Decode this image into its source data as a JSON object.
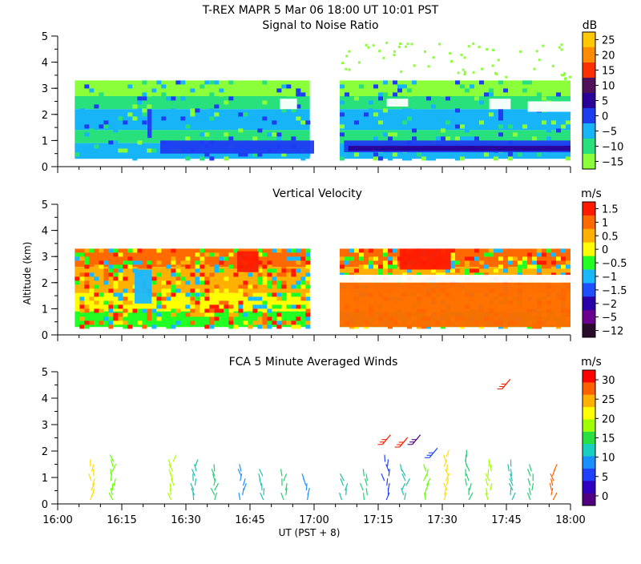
{
  "header": {
    "title": "T-REX   MAPR   5 Mar 06   18:00 UT   10:01   PST"
  },
  "x_axis": {
    "label": "UT  (PST + 8)",
    "range_minutes": [
      0,
      120
    ],
    "ticks": [
      {
        "value": 0,
        "label": "16:00"
      },
      {
        "value": 15,
        "label": "16:15"
      },
      {
        "value": 30,
        "label": "16:30"
      },
      {
        "value": 45,
        "label": "16:45"
      },
      {
        "value": 60,
        "label": "17:00"
      },
      {
        "value": 75,
        "label": "17:15"
      },
      {
        "value": 90,
        "label": "17:30"
      },
      {
        "value": 105,
        "label": "17:45"
      },
      {
        "value": 120,
        "label": "18:00"
      }
    ]
  },
  "chart_data": [
    {
      "type": "heatmap",
      "title": "Signal to Noise Ratio",
      "ylabel": "",
      "ylim": [
        0,
        5
      ],
      "yticks": [
        0,
        1,
        2,
        3,
        4,
        5
      ],
      "xlim_minutes": [
        0,
        120
      ],
      "data_segments_minutes": [
        [
          4,
          59
        ],
        [
          66,
          120
        ]
      ],
      "data_altitude_km": [
        0.3,
        3.3
      ],
      "colorbar": {
        "unit": "dB",
        "labels": [
          "25",
          "20",
          "15",
          "10",
          "5",
          "0",
          "−5",
          "−10",
          "−15"
        ],
        "colors": [
          "#ffc800",
          "#ff8c00",
          "#ff3000",
          "#50105a",
          "#2a0099",
          "#1e3cf0",
          "#18b4f8",
          "#28e07c",
          "#8aff3a"
        ]
      },
      "rows": [
        {
          "alt": [
            2.7,
            3.3
          ],
          "color": "#8aff3a"
        },
        {
          "alt": [
            2.2,
            2.7
          ],
          "color": "#28e07c"
        },
        {
          "alt": [
            1.4,
            2.2
          ],
          "color": "#18b4f8"
        },
        {
          "alt": [
            0.9,
            1.4
          ],
          "color": "#28e07c"
        },
        {
          "alt": [
            0.3,
            0.9
          ],
          "color": "#18b4f8"
        }
      ],
      "features": [
        {
          "t": [
            24,
            60
          ],
          "alt": [
            0.5,
            1.0
          ],
          "color": "#1e3cf0"
        },
        {
          "t": [
            67,
            120
          ],
          "alt": [
            0.55,
            1.0
          ],
          "color": "#1e3cf0"
        },
        {
          "t": [
            68,
            120
          ],
          "alt": [
            0.6,
            0.8
          ],
          "color": "#2a0099"
        },
        {
          "t": [
            21,
            22
          ],
          "alt": [
            1.1,
            2.2
          ],
          "color": "#1e3cf0"
        },
        {
          "t": [
            52,
            56
          ],
          "alt": [
            2.2,
            2.6
          ],
          "color": "#ffffff"
        },
        {
          "t": [
            77,
            82
          ],
          "alt": [
            2.3,
            2.6
          ],
          "color": "#ffffff"
        },
        {
          "t": [
            101,
            106
          ],
          "alt": [
            2.2,
            2.6
          ],
          "color": "#ffffff"
        },
        {
          "t": [
            110,
            120
          ],
          "alt": [
            2.1,
            2.5
          ],
          "color": "#ffffff"
        }
      ]
    },
    {
      "type": "heatmap",
      "title": "Vertical Velocity",
      "ylabel": "Altitude (km)",
      "ylim": [
        0,
        5
      ],
      "yticks": [
        0,
        1,
        2,
        3,
        4,
        5
      ],
      "xlim_minutes": [
        0,
        120
      ],
      "data_segments_minutes": [
        [
          4,
          59
        ],
        [
          66,
          120
        ]
      ],
      "data_altitude_km": [
        0.3,
        3.3
      ],
      "colorbar": {
        "unit": "m/s",
        "labels": [
          "1.5",
          "1",
          "0.5",
          "0",
          "−0.5",
          "−1",
          "−1.5",
          "−2",
          "−5",
          "−12"
        ],
        "colors": [
          "#ff1a00",
          "#ff6a00",
          "#ffb000",
          "#ffff00",
          "#22ff22",
          "#19b8ff",
          "#1e50ff",
          "#2a00aa",
          "#6a0090",
          "#2a0a2a"
        ]
      },
      "rows": [
        {
          "alt": [
            2.6,
            3.3
          ],
          "color": "#ff6a00"
        },
        {
          "alt": [
            1.6,
            2.6
          ],
          "color": "#ffb000"
        },
        {
          "alt": [
            0.9,
            1.6
          ],
          "color": "#ffff00"
        },
        {
          "alt": [
            0.3,
            0.9
          ],
          "color": "#22ff22"
        }
      ],
      "features": [
        {
          "t": [
            66,
            120
          ],
          "alt": [
            2.0,
            2.3
          ],
          "color": "#ffffff"
        },
        {
          "t": [
            66,
            120
          ],
          "alt": [
            0.3,
            2.0
          ],
          "color": "#ff6a00"
        },
        {
          "t": [
            80,
            92
          ],
          "alt": [
            2.5,
            3.3
          ],
          "color": "#ff1a00"
        },
        {
          "t": [
            42,
            47
          ],
          "alt": [
            2.4,
            3.2
          ],
          "color": "#ff1a00"
        },
        {
          "t": [
            18,
            22
          ],
          "alt": [
            1.2,
            2.5
          ],
          "color": "#19b8ff"
        }
      ]
    },
    {
      "type": "vector",
      "title": "FCA 5 Minute Averaged Winds",
      "ylabel": "",
      "ylim": [
        0,
        5
      ],
      "yticks": [
        0,
        1,
        2,
        3,
        4,
        5
      ],
      "xlim_minutes": [
        0,
        120
      ],
      "colorbar": {
        "unit": "m/s",
        "labels": [
          "30",
          "25",
          "20",
          "15",
          "10",
          "5",
          "0"
        ],
        "colors": [
          "#ff0000",
          "#ff6000",
          "#ffb000",
          "#ffff00",
          "#a0ff00",
          "#28e040",
          "#18d0c0",
          "#1890ff",
          "#2040ff",
          "#3000c0",
          "#500080"
        ]
      },
      "wind_columns": [
        {
          "t": 8,
          "tops": 1.5,
          "color": "#ffdd00"
        },
        {
          "t": 13,
          "tops": 1.6,
          "color": "#66ff00"
        },
        {
          "t": 27,
          "tops": 1.6,
          "color": "#b0ff00"
        },
        {
          "t": 32,
          "tops": 1.5,
          "color": "#22c0b0"
        },
        {
          "t": 37,
          "tops": 1.4,
          "color": "#22d070"
        },
        {
          "t": 43,
          "tops": 1.3,
          "color": "#2090ff"
        },
        {
          "t": 48,
          "tops": 1.2,
          "color": "#22c0b0"
        },
        {
          "t": 53,
          "tops": 1.1,
          "color": "#22d070"
        },
        {
          "t": 58,
          "tops": 1.0,
          "color": "#2090ff"
        },
        {
          "t": 67,
          "tops": 1.0,
          "color": "#22c0b0"
        },
        {
          "t": 72,
          "tops": 1.2,
          "color": "#22d070"
        },
        {
          "t": 77,
          "tops": 1.7,
          "color": "#2040ff"
        },
        {
          "t": 81,
          "tops": 1.3,
          "color": "#22c0b0"
        },
        {
          "t": 86,
          "tops": 1.3,
          "color": "#66ff00"
        },
        {
          "t": 91,
          "tops": 1.9,
          "color": "#ffdd00"
        },
        {
          "t": 96,
          "tops": 1.8,
          "color": "#22d070"
        },
        {
          "t": 101,
          "tops": 1.5,
          "color": "#a0ff00"
        },
        {
          "t": 106,
          "tops": 1.5,
          "color": "#22c0b0"
        },
        {
          "t": 111,
          "tops": 1.3,
          "color": "#22d070"
        },
        {
          "t": 116,
          "tops": 1.4,
          "color": "#ff6000"
        }
      ],
      "upper_barbs": [
        {
          "t": 76,
          "alt": 2.25,
          "color": "#ff2000"
        },
        {
          "t": 80,
          "alt": 2.15,
          "color": "#ff2000"
        },
        {
          "t": 83,
          "alt": 2.25,
          "color": "#500080"
        },
        {
          "t": 87,
          "alt": 1.75,
          "color": "#2040ff"
        },
        {
          "t": 104,
          "alt": 4.35,
          "color": "#ff2000"
        }
      ]
    }
  ]
}
